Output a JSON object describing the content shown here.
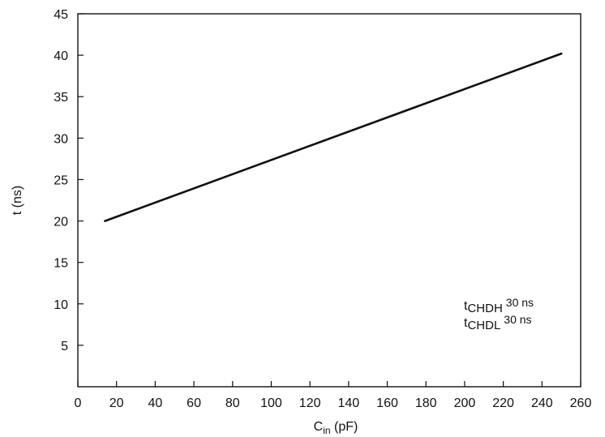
{
  "chart_data": {
    "type": "line",
    "xlabel_main": "C",
    "xlabel_sub": "in",
    "xlabel_unit": " (pF)",
    "ylabel": "t (ns)",
    "xlim": [
      0,
      260
    ],
    "ylim": [
      0,
      45
    ],
    "x_ticks": [
      0,
      20,
      40,
      60,
      80,
      100,
      120,
      140,
      160,
      180,
      200,
      220,
      240,
      260
    ],
    "y_ticks": [
      5,
      10,
      15,
      20,
      25,
      30,
      35,
      40,
      45
    ],
    "grid": false,
    "series": [
      {
        "x": [
          14,
          250
        ],
        "y": [
          20,
          40.2
        ]
      }
    ],
    "annotations": [
      {
        "main": "t",
        "sub": "CHDH",
        "sup": "30 ns"
      },
      {
        "main": "t",
        "sub": "CHDL",
        "sup": "30 ns"
      }
    ]
  }
}
